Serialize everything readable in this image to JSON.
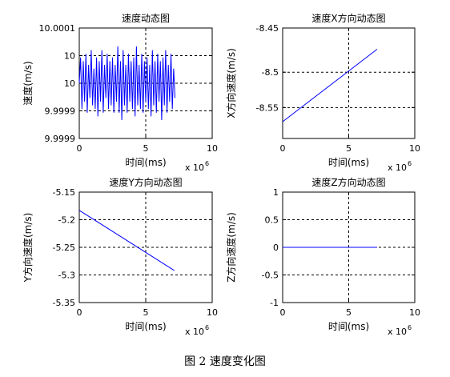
{
  "figure": {
    "caption": "图 2  速度变化图"
  },
  "chart_data": [
    {
      "type": "line",
      "title": "速度动态图",
      "xlabel": "时间(ms)",
      "ylabel": "速度(m/s)",
      "x_exponent": "x 10",
      "x_exponent_power": "6",
      "x_tick_labels": [
        "0",
        "5",
        "10"
      ],
      "y_tick_labels": [
        "10.0001",
        "10",
        "10",
        "9.9999",
        "9.9999"
      ],
      "xlim": [
        0,
        10
      ],
      "ylim": [
        9.99985,
        10.00015
      ],
      "grid": true,
      "series": [
        {
          "color": "#0000ff",
          "x": [
            0,
            0.1,
            0.2,
            0.3,
            0.4,
            0.5,
            0.6,
            0.7,
            0.8,
            0.9,
            1.0,
            1.1,
            1.2,
            1.3,
            1.4,
            1.5,
            1.6,
            1.7,
            1.8,
            1.9,
            2.0,
            2.1,
            2.2,
            2.3,
            2.4,
            2.5,
            2.6,
            2.7,
            2.8,
            2.9,
            3.0,
            3.1,
            3.2,
            3.3,
            3.4,
            3.5,
            3.6,
            3.7,
            3.8,
            3.9,
            4.0,
            4.1,
            4.2,
            4.3,
            4.4,
            4.5,
            4.6,
            4.7,
            4.8,
            4.9,
            5.0,
            5.1,
            5.2,
            5.3,
            5.4,
            5.5,
            5.6,
            5.7,
            5.8,
            5.9,
            6.0,
            6.1,
            6.2,
            6.3,
            6.4,
            6.5,
            6.6,
            6.7,
            6.8,
            6.9,
            7.0,
            7.1,
            7.2
          ],
          "y": [
            10.0,
            10.00007,
            9.99993,
            10.00006,
            9.99995,
            10.00008,
            9.99992,
            10.00005,
            9.99996,
            10.00009,
            9.99994,
            10.00004,
            9.99993,
            10.00007,
            9.99991,
            10.00006,
            9.99995,
            10.00009,
            9.99992,
            10.00005,
            9.99996,
            10.00008,
            9.99993,
            10.00006,
            9.99994,
            10.00007,
            9.99992,
            10.00005,
            9.99995,
            10.0001,
            9.99992,
            10.00006,
            9.9999,
            10.00009,
            9.99994,
            10.00005,
            9.99992,
            10.00008,
            9.99995,
            10.00006,
            9.99993,
            10.00007,
            9.99991,
            10.0001,
            9.99994,
            10.00005,
            9.99993,
            10.00008,
            9.99992,
            10.00006,
            9.99995,
            10.00007,
            9.99993,
            10.00005,
            9.99991,
            10.00009,
            9.99994,
            10.00006,
            9.99992,
            10.00008,
            9.99995,
            10.00006,
            9.9999,
            10.00007,
            9.99994,
            10.00009,
            9.99992,
            10.00005,
            9.99995,
            10.00008,
            9.99993,
            10.00004,
            9.99996
          ]
        }
      ]
    },
    {
      "type": "line",
      "title": "速度X方向动态图",
      "xlabel": "时间(ms)",
      "ylabel": "X方向速度(m/s)",
      "x_exponent": "x 10",
      "x_exponent_power": "6",
      "x_tick_labels": [
        "0",
        "5",
        "10"
      ],
      "y_tick_labels": [
        "-8.45",
        "-8.5",
        "-8.55"
      ],
      "xlim": [
        0,
        10
      ],
      "ylim": [
        -8.575,
        -8.45
      ],
      "grid": true,
      "series": [
        {
          "color": "#0000ff",
          "x": [
            0,
            7.15
          ],
          "y": [
            -8.556,
            -8.474
          ]
        }
      ]
    },
    {
      "type": "line",
      "title": "速度Y方向动态图",
      "xlabel": "时间(ms)",
      "ylabel": "Y方向速度(m/s)",
      "x_exponent": "x 10",
      "x_exponent_power": "6",
      "x_tick_labels": [
        "0",
        "5",
        "10"
      ],
      "y_tick_labels": [
        "-5.15",
        "-5.2",
        "-5.25",
        "-5.3",
        "-5.35"
      ],
      "xlim": [
        0,
        10
      ],
      "ylim": [
        -5.35,
        -5.15
      ],
      "grid": true,
      "series": [
        {
          "color": "#0000ff",
          "x": [
            0,
            7.15
          ],
          "y": [
            -5.183,
            -5.292
          ]
        }
      ]
    },
    {
      "type": "line",
      "title": "速度Z方向动态图",
      "xlabel": "时间(ms)",
      "ylabel": "Z方向速度(m/s)",
      "x_exponent": "x 10",
      "x_exponent_power": "6",
      "x_tick_labels": [
        "0",
        "5",
        "10"
      ],
      "y_tick_labels": [
        "1",
        "0.5",
        "0",
        "-0.5",
        "-1"
      ],
      "xlim": [
        0,
        10
      ],
      "ylim": [
        -1,
        1
      ],
      "grid": true,
      "series": [
        {
          "color": "#0000ff",
          "x": [
            0,
            7.15
          ],
          "y": [
            0,
            0
          ]
        }
      ]
    }
  ]
}
